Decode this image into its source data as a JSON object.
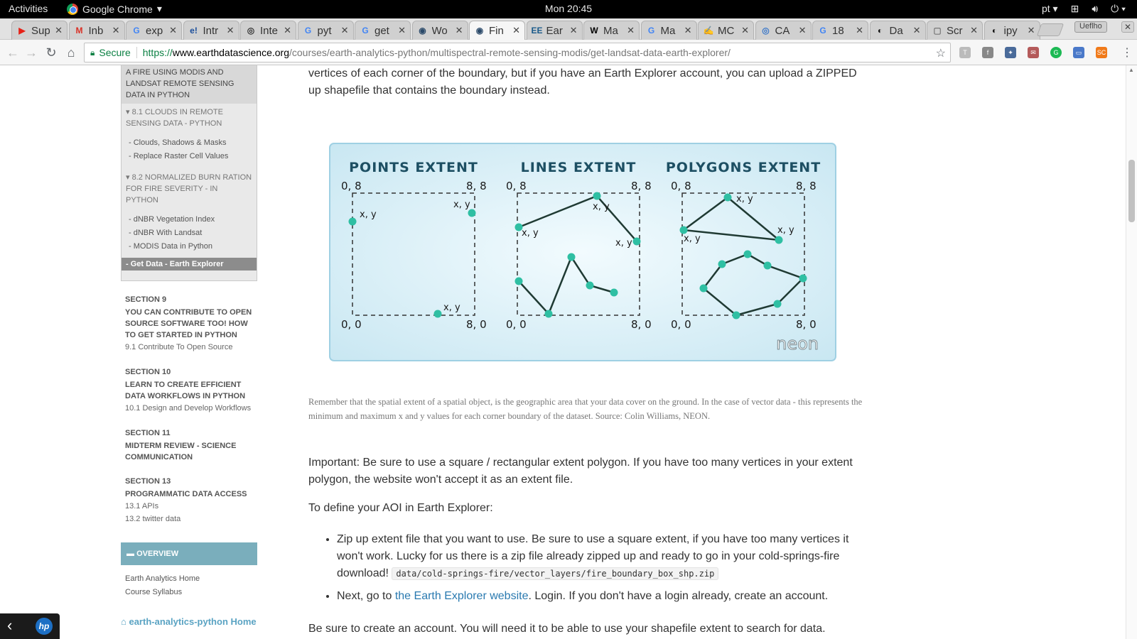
{
  "os_bar": {
    "activities": "Activities",
    "app_name": "Google Chrome",
    "clock": "Mon 20:45",
    "lang": "pt"
  },
  "tabs": [
    {
      "title": "Sup",
      "fav": "▶",
      "color": "#e62117"
    },
    {
      "title": "Inb",
      "fav": "M",
      "color": "#d93025"
    },
    {
      "title": "exp",
      "fav": "G",
      "color": "#4285f4"
    },
    {
      "title": "Intr",
      "fav": "e!",
      "color": "#1a4e9b"
    },
    {
      "title": "Inte",
      "fav": "◎",
      "color": "#333333"
    },
    {
      "title": "pyt",
      "fav": "G",
      "color": "#4285f4"
    },
    {
      "title": "get",
      "fav": "G",
      "color": "#4285f4"
    },
    {
      "title": "Wo",
      "fav": "◉",
      "color": "#2b4a6a"
    },
    {
      "title": "Fin",
      "fav": "◉",
      "color": "#2b4a6a"
    },
    {
      "title": "Ear",
      "fav": "EE",
      "color": "#1a5a8a"
    },
    {
      "title": "Ma",
      "fav": "W",
      "color": "#000000"
    },
    {
      "title": "Ma",
      "fav": "G",
      "color": "#4285f4"
    },
    {
      "title": "MC",
      "fav": "✍",
      "color": "#444444"
    },
    {
      "title": "CA",
      "fav": "◎",
      "color": "#3b78c9"
    },
    {
      "title": "18",
      "fav": "G",
      "color": "#4285f4"
    },
    {
      "title": "Da",
      "fav": "◐",
      "color": "#111111"
    },
    {
      "title": "Scr",
      "fav": "▢",
      "color": "#777777"
    },
    {
      "title": "ipy",
      "fav": "◐",
      "color": "#111111"
    }
  ],
  "active_tab": 8,
  "profile_label": "Ueflho",
  "address": {
    "secure_label": "Secure",
    "scheme": "https://",
    "host": "www.earthdatascience.org",
    "path": "/courses/earth-analytics-python/multispectral-remote-sensing-modis/get-landsat-data-earth-explorer/"
  },
  "sidebar": {
    "lead": "A FIRE USING MODIS AND LANDSAT REMOTE SENSING DATA IN PYTHON",
    "group1": "▾ 8.1 CLOUDS IN REMOTE SENSING DATA - PYTHON",
    "group1_items": [
      "- Clouds, Shadows & Masks",
      "- Replace Raster Cell Values"
    ],
    "group2": "▾ 8.2 NORMALIZED BURN RATION FOR FIRE SEVERITY - IN PYTHON",
    "group2_items": [
      "- dNBR Vegetation Index",
      "- dNBR With Landsat",
      "- MODIS Data in Python"
    ],
    "active_item": "- Get Data - Earth Explorer",
    "sections": [
      {
        "label": "SECTION 9",
        "name": "YOU CAN CONTRIBUTE TO OPEN SOURCE SOFTWARE TOO! HOW TO GET STARTED IN PYTHON",
        "items": [
          "9.1 Contribute To Open Source"
        ]
      },
      {
        "label": "SECTION 10",
        "name": "LEARN TO CREATE EFFICIENT DATA WORKFLOWS IN PYTHON",
        "items": [
          "10.1 Design and Develop Workflows"
        ]
      },
      {
        "label": "SECTION 11",
        "name": "MIDTERM REVIEW - SCIENCE COMMUNICATION",
        "items": []
      },
      {
        "label": "SECTION 13",
        "name": "PROGRAMMATIC DATA ACCESS",
        "items": [
          "13.1 APIs",
          "13.2 twitter data"
        ]
      }
    ],
    "overview": "OVERVIEW",
    "overview_links": [
      "Earth Analytics Home",
      "Course Syllabus"
    ],
    "home_link": "earth-analytics-python Home"
  },
  "content": {
    "intro": "vertices of each corner of the boundary, but if you have an Earth Explorer account, you can upload a ZIPPED up shapefile that contains the boundary instead.",
    "figure": {
      "titles": [
        "POINTS EXTENT",
        "LINES EXTENT",
        "POLYGONS EXTENT"
      ],
      "corner_tl": "0, 8",
      "corner_tr": "8, 8",
      "corner_bl": "0, 0",
      "corner_br": "8, 0",
      "xy": "x, y",
      "logo": "neon"
    },
    "caption": "Remember that the spatial extent of a spatial object, is the geographic area that your data cover on the ground. In the case of vector data - this represents the minimum and maximum x and y values for each corner boundary of the dataset. Source: Colin Williams, NEON.",
    "important": "Important: Be sure to use a square / rectangular extent polygon. If you have too many vertices in your extent polygon, the website won't accept it as an extent file.",
    "define": "To define your AOI in Earth Explorer:",
    "step1_text": "Zip up extent file that you want to use. Be sure to use a square extent, if you have too many vertices it won't work. Lucky for us there is a zip file already zipped up and ready to go in your cold-springs-fire download!",
    "step1_code": "data/cold-springs-fire/vector_layers/fire_boundary_box_shp.zip",
    "step2_pre": "Next, go to ",
    "step2_link": "the Earth Explorer website",
    "step2_post": ". Login. If you don't have a login already, create an account.",
    "create": "Be sure to create an account. You will need it to be able to use your shapefile extent to search for data."
  }
}
